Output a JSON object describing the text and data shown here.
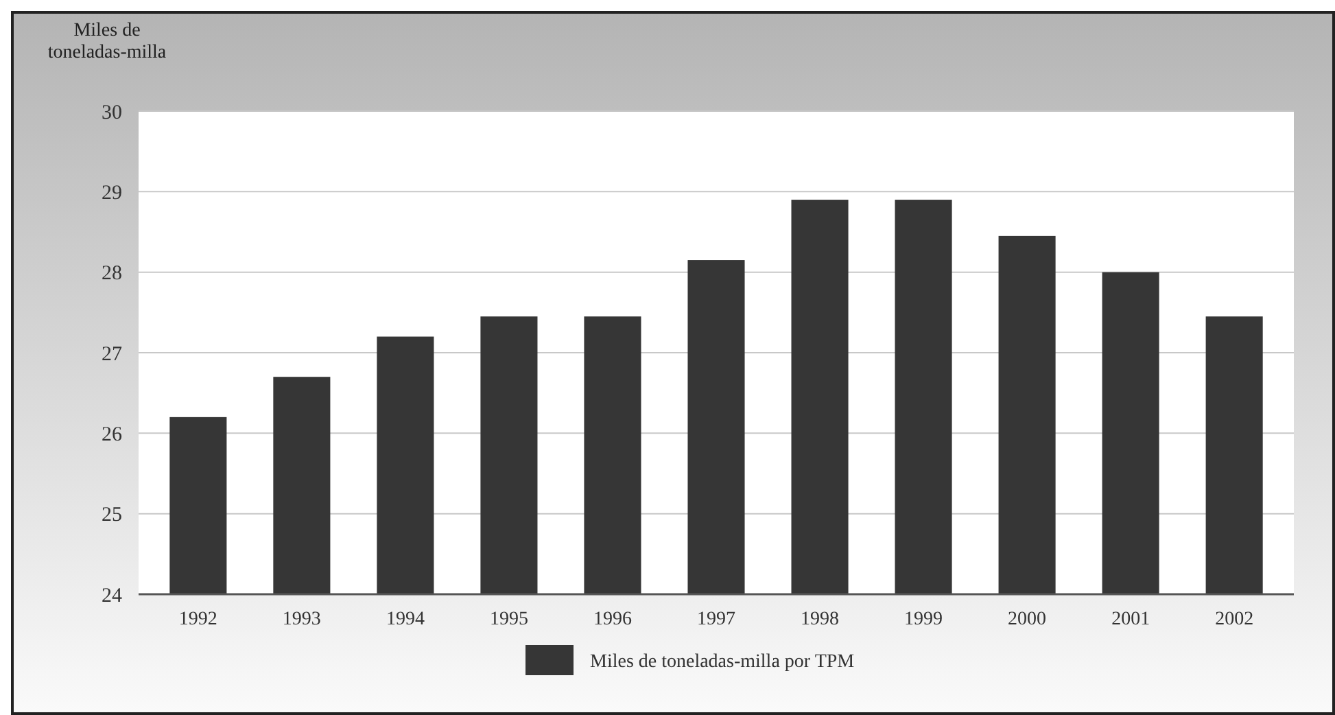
{
  "chart_data": {
    "type": "bar",
    "ylabel": "Miles de toneladas-milla",
    "categories": [
      "1992",
      "1993",
      "1994",
      "1995",
      "1996",
      "1997",
      "1998",
      "1999",
      "2000",
      "2001",
      "2002"
    ],
    "series": [
      {
        "name": "Miles de toneladas-milla por TPM",
        "color": "#363636",
        "values": [
          26.2,
          26.7,
          27.2,
          27.45,
          27.45,
          28.15,
          28.9,
          28.9,
          28.45,
          28.0,
          27.45
        ]
      }
    ],
    "ylim": [
      24,
      30
    ],
    "yticks": [
      24,
      25,
      26,
      27,
      28,
      29,
      30
    ],
    "grid": "y",
    "legend": "bottom"
  }
}
